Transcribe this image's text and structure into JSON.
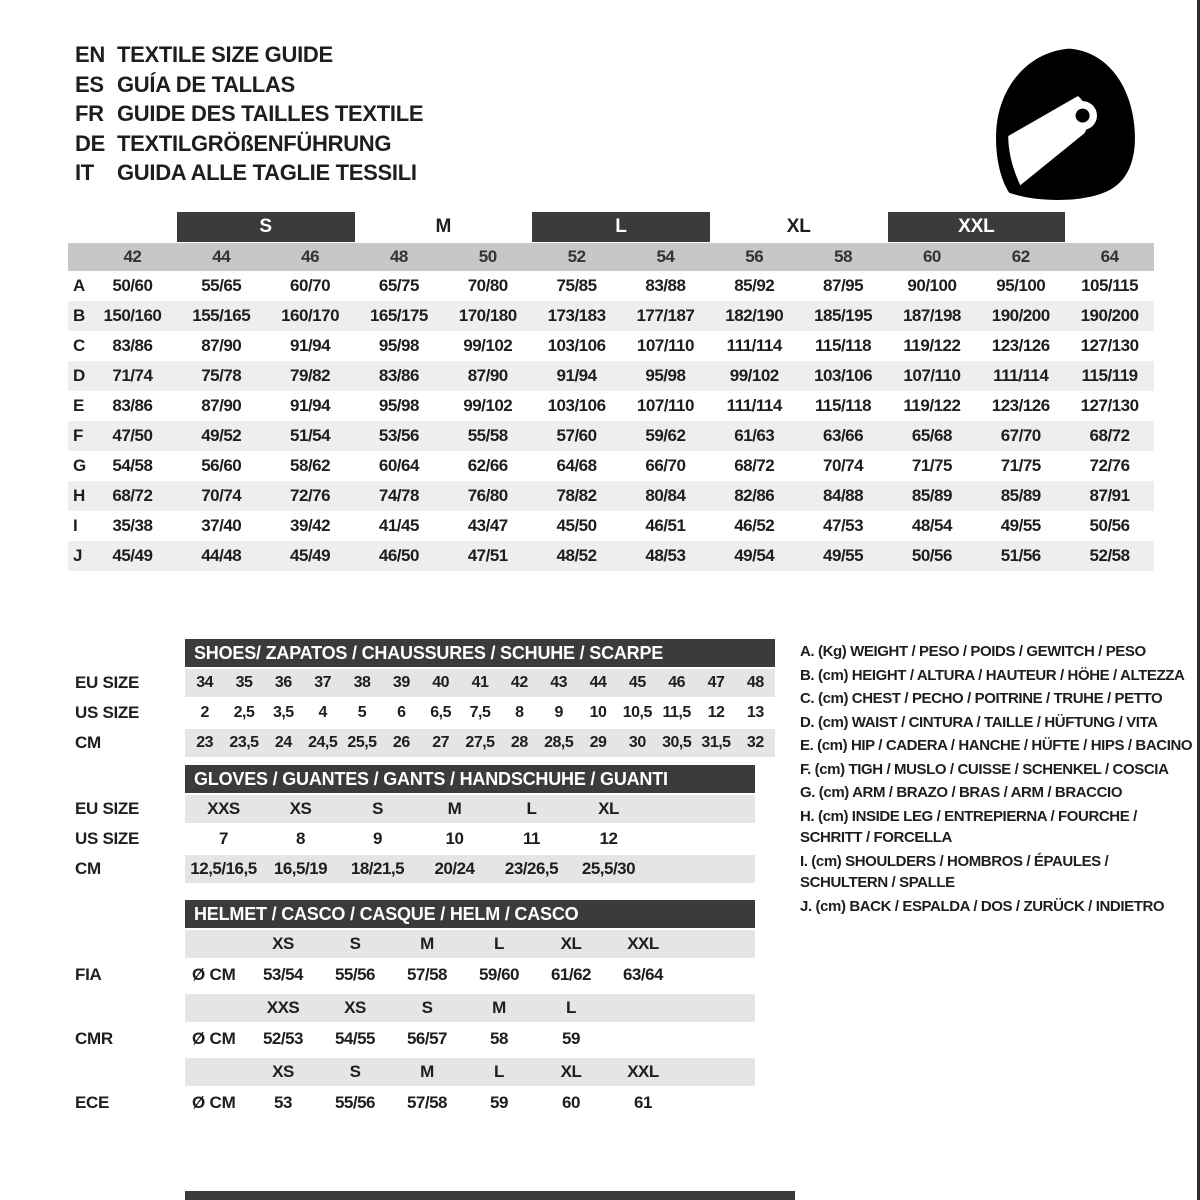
{
  "header": {
    "entries": [
      {
        "code": "EN",
        "title": "TEXTILE SIZE GUIDE"
      },
      {
        "code": "ES",
        "title": "GUÍA DE TALLAS"
      },
      {
        "code": "FR",
        "title": "GUIDE DES TAILLES TEXTILE"
      },
      {
        "code": "DE",
        "title": "TEXTILGRÖßENFÜHRUNG"
      },
      {
        "code": "IT",
        "title": "GUIDA ALLE TAGLIE TESSILI"
      }
    ],
    "icon": "racing-helmet"
  },
  "sizes_table": {
    "group_headers": [
      {
        "label": "S",
        "filled": true,
        "covers": [
          "44",
          "46"
        ]
      },
      {
        "label": "M",
        "filled": false,
        "covers": [
          "48",
          "50"
        ]
      },
      {
        "label": "L",
        "filled": true,
        "covers": [
          "52",
          "54"
        ]
      },
      {
        "label": "XL",
        "filled": false,
        "covers": [
          "56",
          "58"
        ]
      },
      {
        "label": "XXL",
        "filled": true,
        "covers": [
          "60",
          "62"
        ]
      }
    ],
    "columns": [
      "42",
      "44",
      "46",
      "48",
      "50",
      "52",
      "54",
      "56",
      "58",
      "60",
      "62",
      "64"
    ],
    "rows": [
      {
        "label": "A",
        "values": [
          "50/60",
          "55/65",
          "60/70",
          "65/75",
          "70/80",
          "75/85",
          "83/88",
          "85/92",
          "87/95",
          "90/100",
          "95/100",
          "105/115"
        ]
      },
      {
        "label": "B",
        "values": [
          "150/160",
          "155/165",
          "160/170",
          "165/175",
          "170/180",
          "173/183",
          "177/187",
          "182/190",
          "185/195",
          "187/198",
          "190/200",
          "190/200"
        ]
      },
      {
        "label": "C",
        "values": [
          "83/86",
          "87/90",
          "91/94",
          "95/98",
          "99/102",
          "103/106",
          "107/110",
          "111/114",
          "115/118",
          "119/122",
          "123/126",
          "127/130"
        ]
      },
      {
        "label": "D",
        "values": [
          "71/74",
          "75/78",
          "79/82",
          "83/86",
          "87/90",
          "91/94",
          "95/98",
          "99/102",
          "103/106",
          "107/110",
          "111/114",
          "115/119"
        ]
      },
      {
        "label": "E",
        "values": [
          "83/86",
          "87/90",
          "91/94",
          "95/98",
          "99/102",
          "103/106",
          "107/110",
          "111/114",
          "115/118",
          "119/122",
          "123/126",
          "127/130"
        ]
      },
      {
        "label": "F",
        "values": [
          "47/50",
          "49/52",
          "51/54",
          "53/56",
          "55/58",
          "57/60",
          "59/62",
          "61/63",
          "63/66",
          "65/68",
          "67/70",
          "68/72"
        ]
      },
      {
        "label": "G",
        "values": [
          "54/58",
          "56/60",
          "58/62",
          "60/64",
          "62/66",
          "64/68",
          "66/70",
          "68/72",
          "70/74",
          "71/75",
          "71/75",
          "72/76"
        ]
      },
      {
        "label": "H",
        "values": [
          "68/72",
          "70/74",
          "72/76",
          "74/78",
          "76/80",
          "78/82",
          "80/84",
          "82/86",
          "84/88",
          "85/89",
          "85/89",
          "87/91"
        ]
      },
      {
        "label": "I",
        "values": [
          "35/38",
          "37/40",
          "39/42",
          "41/45",
          "43/47",
          "45/50",
          "46/51",
          "46/52",
          "47/53",
          "48/54",
          "49/55",
          "50/56"
        ]
      },
      {
        "label": "J",
        "values": [
          "45/49",
          "44/48",
          "45/49",
          "46/50",
          "47/51",
          "48/52",
          "48/53",
          "49/54",
          "49/55",
          "50/56",
          "51/56",
          "52/58"
        ]
      }
    ]
  },
  "shoes_table": {
    "title": "SHOES/ ZAPATOS / CHAUSSURES / SCHUHE / SCARPE",
    "rows": [
      {
        "label": "EU SIZE",
        "shaded": true,
        "values": [
          "34",
          "35",
          "36",
          "37",
          "38",
          "39",
          "40",
          "41",
          "42",
          "43",
          "44",
          "45",
          "46",
          "47",
          "48"
        ]
      },
      {
        "label": "US SIZE",
        "shaded": false,
        "values": [
          "2",
          "2,5",
          "3,5",
          "4",
          "5",
          "6",
          "6,5",
          "7,5",
          "8",
          "9",
          "10",
          "10,5",
          "11,5",
          "12",
          "13"
        ]
      },
      {
        "label": "CM",
        "shaded": true,
        "values": [
          "23",
          "23,5",
          "24",
          "24,5",
          "25,5",
          "26",
          "27",
          "27,5",
          "28",
          "28,5",
          "29",
          "30",
          "30,5",
          "31,5",
          "32"
        ]
      }
    ]
  },
  "gloves_table": {
    "title": "GLOVES / GUANTES / GANTS / HANDSCHUHE / GUANTI",
    "rows": [
      {
        "label": "EU SIZE",
        "shaded": true,
        "values": [
          "XXS",
          "XS",
          "S",
          "M",
          "L",
          "XL"
        ]
      },
      {
        "label": "US SIZE",
        "shaded": false,
        "values": [
          "7",
          "8",
          "9",
          "10",
          "11",
          "12"
        ]
      },
      {
        "label": "CM",
        "shaded": true,
        "values": [
          "12,5/16,5",
          "16,5/19",
          "18/21,5",
          "20/24",
          "23/26,5",
          "25,5/30"
        ]
      }
    ]
  },
  "helmet_table": {
    "title": "HELMET / CASCO / CASQUE / HELM / CASCO",
    "groups": [
      {
        "standard": "FIA",
        "unit": "Ø CM",
        "sizes": [
          "XS",
          "S",
          "M",
          "L",
          "XL",
          "XXL"
        ],
        "values": [
          "53/54",
          "55/56",
          "57/58",
          "59/60",
          "61/62",
          "63/64"
        ]
      },
      {
        "standard": "CMR",
        "unit": "Ø CM",
        "sizes": [
          "XXS",
          "XS",
          "S",
          "M",
          "L",
          ""
        ],
        "values": [
          "52/53",
          "54/55",
          "56/57",
          "58",
          "59",
          ""
        ]
      },
      {
        "standard": "ECE",
        "unit": "Ø CM",
        "sizes": [
          "XS",
          "S",
          "M",
          "L",
          "XL",
          "XXL"
        ],
        "values": [
          "53",
          "55/56",
          "57/58",
          "59",
          "60",
          "61"
        ]
      }
    ]
  },
  "legend": {
    "items": [
      "A. (Kg) WEIGHT / PESO / POIDS / GEWITCH / PESO",
      "B. (cm) HEIGHT / ALTURA / HAUTEUR / HÖHE / ALTEZZA",
      "C. (cm) CHEST / PECHO / POITRINE / TRUHE / PETTO",
      "D. (cm) WAIST / CINTURA / TAILLE / HÜFTUNG / VITA",
      "E. (cm) HIP / CADERA / HANCHE / HÜFTE / HIPS / BACINO",
      "F. (cm) TIGH / MUSLO / CUISSE / SCHENKEL / COSCIA",
      "G. (cm) ARM / BRAZO / BRAS / ARM / BRACCIO",
      "H. (cm) INSIDE LEG / ENTREPIERNA / FOURCHE / SCHRITT / FORCELLA",
      "I. (cm) SHOULDERS / HOMBROS / ÉPAULES / SCHULTERN / SPALLE",
      "J. (cm) BACK / ESPALDA / DOS / ZURÜCK / INDIETRO"
    ]
  },
  "colors": {
    "dark_bar": "#3b3b3b",
    "size_band": "#c7c7c7",
    "row_stripe": "#eeeeee",
    "shaded_row": "#e5e5e5",
    "text": "#1e1e1e"
  }
}
